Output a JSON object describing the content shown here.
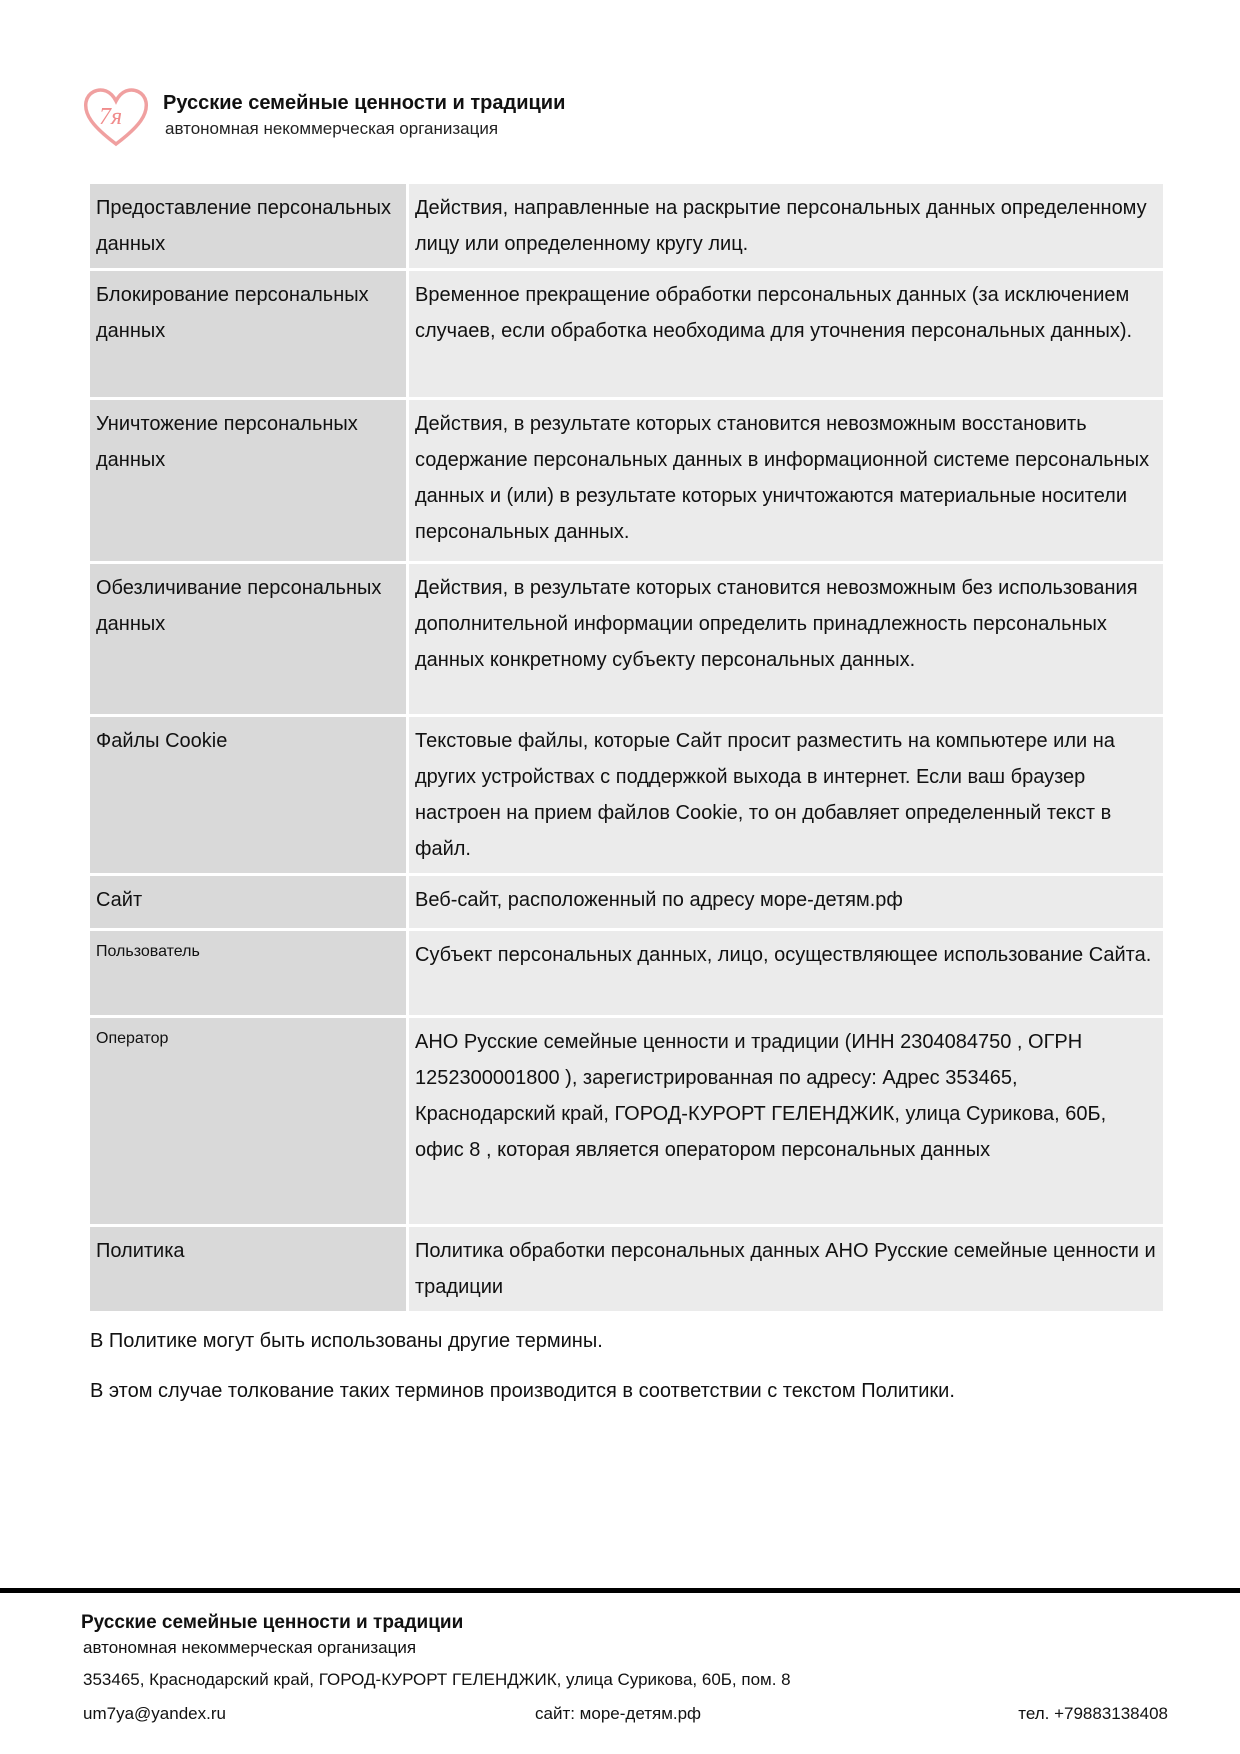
{
  "header": {
    "logo_text": "7я",
    "org_name": "Русские семейные ценности и традиции",
    "org_type": "автономная некоммерческая организация"
  },
  "terms": [
    {
      "term": "Предоставление персональных данных",
      "definition": "Действия, направленные на раскрытие персональных данных определенному лицу или определенному кругу лиц."
    },
    {
      "term": "Блокирование персональных данных",
      "definition": "Временное прекращение обработки персональных данных (за исключением случаев, если обработка необходима для уточнения персональных данных)."
    },
    {
      "term": "Уничтожение персональных данных",
      "definition": "Действия, в результате которых становится невозможным восстановить содержание персональных данных в информационной системе персональных данных и (или) в результате которых уничтожаются материальные носители персональных данных."
    },
    {
      "term": "Обезличивание персональных данных",
      "definition": "Действия, в результате которых становится невозможным без использования дополнительной информации определить принадлежность персональных данных конкретному субъекту персональных данных."
    },
    {
      "term": "Файлы Cookie",
      "definition": "Текстовые файлы, которые Сайт просит разместить на компьютере или на других устройствах с поддержкой выхода в интернет. Если ваш браузер настроен на прием файлов Cookie, то он добавляет определенный текст в файл."
    },
    {
      "term": "Сайт",
      "definition": "Веб-сайт, расположенный по адресу  море-детям.рф"
    },
    {
      "term": "Пользователь",
      "definition": "Субъект персональных данных, лицо, осуществляющее использование Сайта."
    },
    {
      "term": "Оператор",
      "definition": "АНО Русские семейные ценности и традиции (ИНН 2304084750  , ОГРН 1252300001800 ), зарегистрированная по адресу: Адрес 353465, Краснодарский край, ГОРОД-КУРОРТ ГЕЛЕНДЖИК, улица Сурикова, 60Б, офис 8 , которая является оператором персональных данных"
    },
    {
      "term": "Политика",
      "definition": "Политика обработки персональных данных АНО Русские семейные ценности и традиции"
    }
  ],
  "paragraphs": [
    "В Политике могут быть использованы другие термины.",
    "В этом случае толкование таких терминов производится в соответствии с текстом Политики."
  ],
  "footer": {
    "org_name": "Русские семейные ценности и традиции",
    "org_type": "автономная некоммерческая организация",
    "address": "353465, Краснодарский край, ГОРОД-КУРОРТ ГЕЛЕНДЖИК, улица Сурикова, 60Б, пом. 8",
    "email": "um7ya@yandex.ru",
    "site": "сайт: море-детям.рф",
    "phone": "тел. +79883138408"
  }
}
